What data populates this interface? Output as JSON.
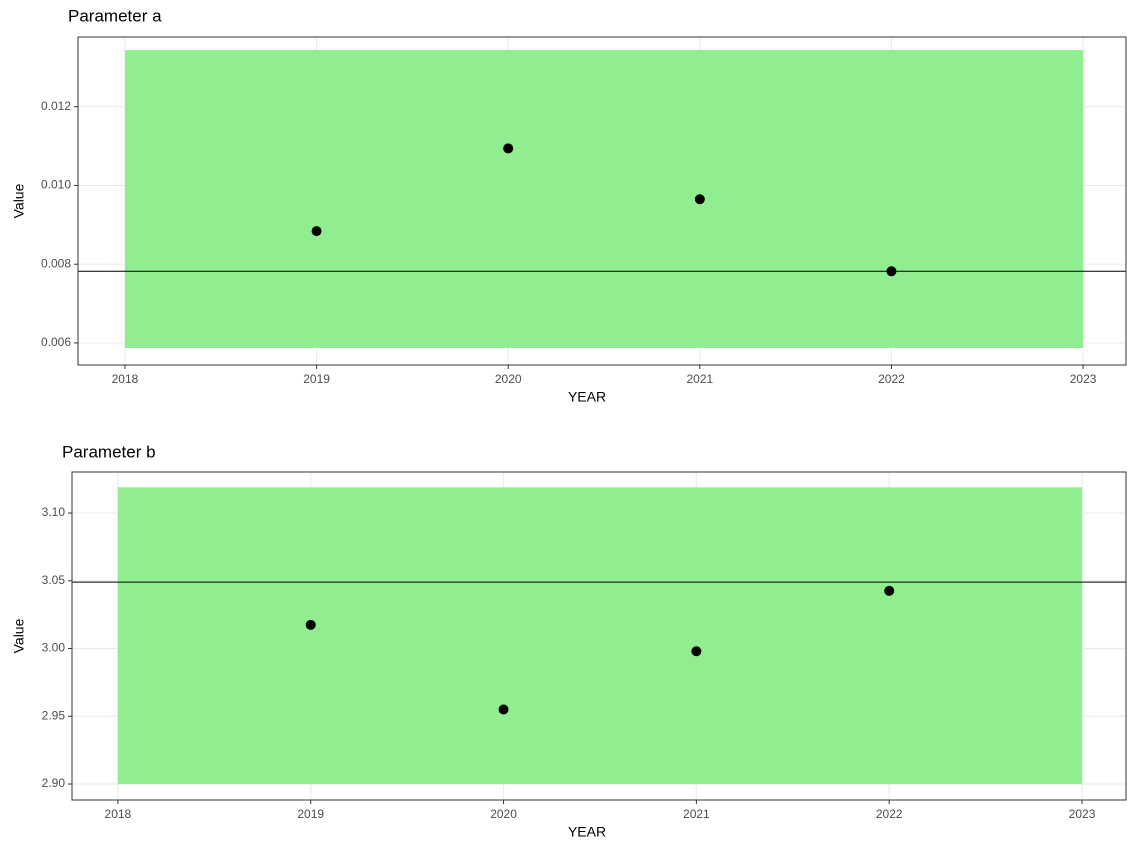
{
  "chart_data": [
    {
      "type": "scatter",
      "title": "Parameter a",
      "x_label": "YEAR",
      "y_label": "Value",
      "x": [
        2019,
        2020,
        2021,
        2022
      ],
      "values": [
        0.00884,
        0.01094,
        0.00965,
        0.00782
      ],
      "color": "#000000",
      "band": {
        "xmin": 2018,
        "xmax": 2023,
        "ymin": 0.00587,
        "ymax": 0.01344,
        "color": "#90ee90"
      },
      "hline": 0.00782,
      "xlim": [
        2017.755,
        2023.224
      ],
      "xticks": [
        2018,
        2019,
        2020,
        2021,
        2022,
        2023
      ],
      "ylim": [
        0.00544,
        0.01377
      ],
      "yticks": [
        0.006,
        0.008,
        {
          "value": 0.01,
          "label": "0.010"
        },
        0.012
      ],
      "grid": true
    },
    {
      "type": "scatter",
      "title": "Parameter b",
      "x_label": "YEAR",
      "y_label": "Value",
      "x": [
        2019,
        2020,
        2021,
        2022
      ],
      "values": [
        3.0175,
        2.955,
        2.998,
        3.0426
      ],
      "color": "#000000",
      "band": {
        "xmin": 2018,
        "xmax": 2023,
        "ymin": 2.9,
        "ymax": 3.119,
        "color": "#90ee90"
      },
      "hline": 3.049,
      "xlim": [
        2017.762,
        2023.228
      ],
      "xticks": [
        2018,
        2019,
        2020,
        2021,
        2022,
        2023
      ],
      "ylim": [
        2.8882,
        3.1303
      ],
      "yticks": [
        {
          "value": 2.9,
          "label": "2.90"
        },
        2.95,
        {
          "value": 3,
          "label": "3.00"
        },
        3.05,
        {
          "value": 3.1,
          "label": "3.10"
        }
      ],
      "grid": true
    }
  ]
}
